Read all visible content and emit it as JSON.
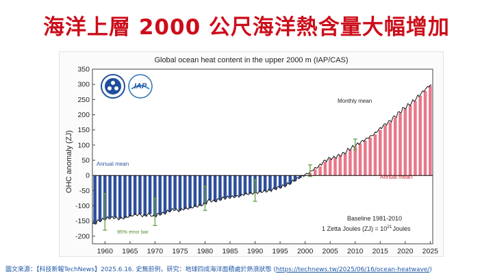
{
  "headline": "海洋上層 2000 公尺海洋熱含量大幅增加",
  "footer": {
    "text": "圖文來源：【科技新報TechNews】2025.6.16. 史無前例，研究：地球四成海洋面積處於熱浪狀態 (",
    "link": "https://technews.tw/2025/06/16/ocean-heatwave/",
    "close": ")"
  },
  "logos": {
    "left": "cas-logo",
    "right_text": "IAP"
  },
  "chart_data": {
    "type": "bar",
    "title": "Global ocean heat content in the upper 2000 m (IAP/CAS)",
    "ylabel": "OHC anomaly (ZJ)",
    "xlabel": "",
    "xlim": [
      1957.5,
      2025.5
    ],
    "ylim": [
      -225,
      350
    ],
    "yticks": [
      -200,
      -150,
      -100,
      -50,
      0,
      50,
      100,
      150,
      200,
      250,
      300,
      350
    ],
    "xticks": [
      1960,
      1965,
      1970,
      1975,
      1980,
      1985,
      1990,
      1995,
      2000,
      2005,
      2010,
      2015,
      2020,
      2025
    ],
    "grid": false,
    "annotations": {
      "monthly": "Monthly mean",
      "annual_left": "Annual mean",
      "annual_right": "Annual mean",
      "error": "95% error bar",
      "baseline": "Baseline 1981-2010",
      "units_pre": "1 Zetta Joules (ZJ) = 10",
      "units_sup": "21",
      "units_post": "Joules"
    },
    "colors": {
      "negative": "#2e4f9c",
      "positive": "#e8788a",
      "line": "#222222",
      "error": "#6aa84f",
      "zero": "#000000"
    },
    "series": [
      {
        "years": [
          1958,
          1959,
          1960,
          1961,
          1962,
          1963,
          1964,
          1965,
          1966,
          1967,
          1968,
          1969,
          1970,
          1971,
          1972,
          1973,
          1974,
          1975,
          1976,
          1977,
          1978,
          1979,
          1980,
          1981,
          1982,
          1983,
          1984,
          1985,
          1986,
          1987,
          1988,
          1989,
          1990,
          1991,
          1992,
          1993,
          1994,
          1995,
          1996,
          1997,
          1998,
          1999,
          2000,
          2001,
          2002,
          2003,
          2004,
          2005,
          2006,
          2007,
          2008,
          2009,
          2010,
          2011,
          2012,
          2013,
          2014,
          2015,
          2016,
          2017,
          2018,
          2019,
          2020,
          2021,
          2022,
          2023,
          2024,
          2025
        ],
        "values": [
          -160,
          -150,
          -145,
          -140,
          -138,
          -142,
          -140,
          -135,
          -130,
          -128,
          -133,
          -127,
          -135,
          -128,
          -125,
          -118,
          -112,
          -116,
          -110,
          -108,
          -103,
          -100,
          -95,
          -82,
          -85,
          -80,
          -75,
          -72,
          -70,
          -68,
          -62,
          -60,
          -58,
          -55,
          -52,
          -50,
          -45,
          -40,
          -35,
          -28,
          -18,
          -8,
          0,
          8,
          20,
          30,
          45,
          55,
          58,
          65,
          72,
          85,
          95,
          105,
          115,
          125,
          135,
          150,
          165,
          175,
          190,
          205,
          220,
          232,
          245,
          262,
          278,
          295
        ]
      }
    ],
    "error_bars": [
      {
        "year": 1960,
        "low": -180,
        "high": -60
      },
      {
        "year": 1970,
        "low": -165,
        "high": -75
      },
      {
        "year": 1980,
        "low": -115,
        "high": -35
      },
      {
        "year": 1990,
        "low": -85,
        "high": -15
      },
      {
        "year": 2001,
        "low": -3,
        "high": 35
      },
      {
        "year": 2010,
        "low": 85,
        "high": 120
      }
    ]
  }
}
